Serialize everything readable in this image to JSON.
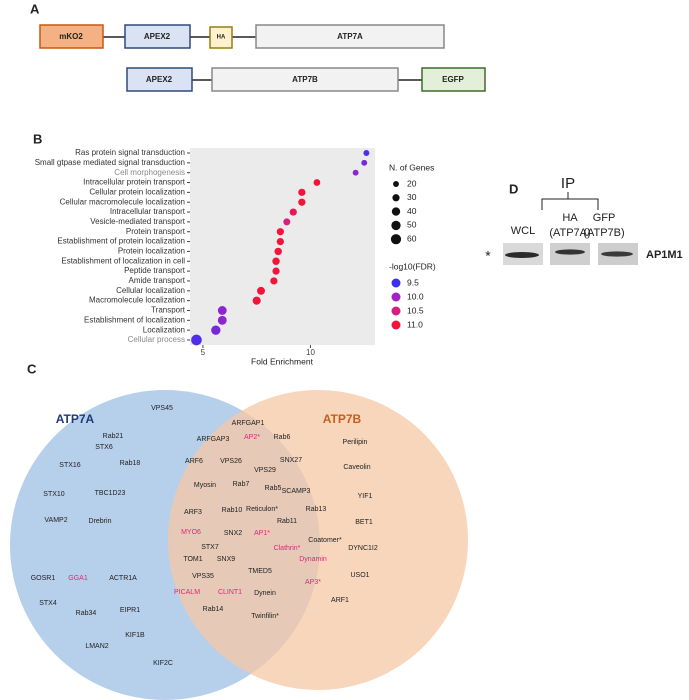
{
  "panel_a": {
    "label": "A",
    "row_1": [
      "mKO2",
      "APEX2",
      "HA",
      "ATP7A"
    ],
    "row_2": [
      "APEX2",
      "ATP7B",
      "EGFP"
    ]
  },
  "chart_data": {
    "panel_label": "B",
    "type": "dotplot",
    "categories": [
      "Ras protein signal transduction",
      "Small gtpase mediated signal transduction",
      "Cell morphogenesis",
      "Intracellular protein transport",
      "Cellular protein localization",
      "Cellular macromolecule localization",
      "Intracellular transport",
      "Vesicle-mediated transport",
      "Protein transport",
      "Establishment of protein localization",
      "Protein localization",
      "Establishment of localization in cell",
      "Peptide transport",
      "Amide transport",
      "Cellular localization",
      "Macromolecule localization",
      "Transport",
      "Establishment of localization",
      "Localization",
      "Cellular process"
    ],
    "values": [
      12.6,
      12.5,
      12.1,
      10.3,
      9.6,
      9.6,
      9.2,
      8.9,
      8.6,
      8.6,
      8.5,
      8.4,
      8.4,
      8.3,
      7.7,
      7.5,
      5.9,
      5.9,
      5.6,
      4.7
    ],
    "sizes": [
      20,
      20,
      20,
      26,
      30,
      30,
      30,
      28,
      30,
      30,
      32,
      32,
      30,
      30,
      36,
      38,
      45,
      45,
      50,
      65
    ],
    "color_values": [
      9.6,
      9.8,
      9.9,
      11.0,
      11.0,
      11.0,
      10.8,
      10.5,
      11.0,
      11.0,
      11.0,
      11.0,
      11.0,
      11.0,
      11.0,
      11.0,
      9.9,
      9.9,
      9.8,
      9.6
    ],
    "x_label": "Fold Enrichment",
    "xlim": [
      4.4,
      13.0
    ],
    "xticks": [
      5,
      10
    ],
    "size_legend": {
      "title": "N. of Genes",
      "ticks": [
        20,
        30,
        40,
        50,
        60
      ]
    },
    "color_legend": {
      "title": "-log10(FDR)",
      "ticks": [
        9.5,
        {
          "value": 10,
          "label": "10.0"
        },
        10.5,
        {
          "value": 11,
          "label": "11.0"
        }
      ],
      "colors": [
        "#3b2ff0",
        "#a323c9",
        "#d5207f",
        "#f2153a"
      ]
    }
  },
  "panel_c": {
    "label": "C",
    "sets": [
      "ATP7A",
      "ATP7B"
    ],
    "atp7a_only": [
      "VPS45",
      "Rab21",
      "STX6",
      "Rab18",
      "STX16",
      "TBC1D23",
      "STX10",
      "Drebrin",
      "VAMP2",
      "GOSR1",
      "GGA1",
      "ACTR1A",
      "STX4",
      "Rab34",
      "EIPR1",
      "KIF1B",
      "LMAN2",
      "KIF2C"
    ],
    "shared": [
      "ARFGAP1",
      "ARFGAP3",
      "AP2*",
      "Rab6",
      "ARF6",
      "VPS26",
      "SNX27",
      "VPS29",
      "Myosin",
      "Rab7",
      "Rab5",
      "SCAMP3",
      "ARF3",
      "Rab10",
      "Reticulon*",
      "Rab13",
      "Rab11",
      "MYO6",
      "SNX2",
      "AP1*",
      "STX7",
      "Clathrin*",
      "Coatomer*",
      "TOM1",
      "SNX9",
      "Dynamin",
      "VPS35",
      "TMED5",
      "AP3*",
      "PICALM",
      "CLINT1",
      "Dynein",
      "Rab14",
      "Twinfilin*"
    ],
    "atp7b_only": [
      "Perilipin",
      "Caveolin",
      "YIF1",
      "BET1",
      "DYNC1I2",
      "USO1",
      "ARF1"
    ]
  },
  "panel_d": {
    "label": "D",
    "ip": "IP",
    "lanes": [
      {
        "name": "WCL"
      },
      {
        "name": "HA",
        "sub": "(ATP7A)"
      },
      {
        "name": "GFP",
        "sub": "(ATP7B)"
      }
    ],
    "band_marker": "*",
    "protein": "AP1M1"
  }
}
